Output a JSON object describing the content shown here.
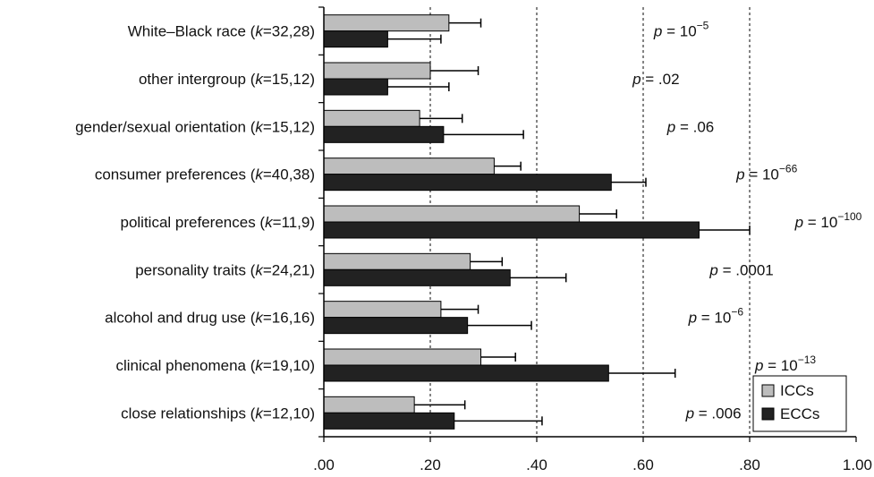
{
  "chart_data": {
    "type": "bar",
    "orientation": "horizontal",
    "title": "",
    "xlabel": "",
    "ylabel": "",
    "xlim": [
      0,
      1.0
    ],
    "x_ticks": [
      ".00",
      ".20",
      ".40",
      ".60",
      ".80",
      "1.00"
    ],
    "x_tick_values": [
      0,
      0.2,
      0.4,
      0.6,
      0.8,
      1.0
    ],
    "grid": "dashed vertical lines at .20, .40, .60, .80",
    "legend_position": "bottom-right",
    "categories": [
      {
        "label": "White–Black race (",
        "k_var": "k",
        "k_values": "=32,28)"
      },
      {
        "label": "other intergroup (",
        "k_var": "k",
        "k_values": "=15,12)"
      },
      {
        "label": "gender/sexual orientation (",
        "k_var": "k",
        "k_values": "=15,12)"
      },
      {
        "label": "consumer preferences (",
        "k_var": "k",
        "k_values": "=40,38)"
      },
      {
        "label": "political preferences (",
        "k_var": "k",
        "k_values": "=11,9)"
      },
      {
        "label": "personality traits (",
        "k_var": "k",
        "k_values": "=24,21)"
      },
      {
        "label": "alcohol and drug use (",
        "k_var": "k",
        "k_values": "=16,16)"
      },
      {
        "label": "clinical phenomena (",
        "k_var": "k",
        "k_values": "=19,10)"
      },
      {
        "label": "close relationships (",
        "k_var": "k",
        "k_values": "=12,10)"
      }
    ],
    "series": [
      {
        "name": "ICCs",
        "color": "#bdbdbd",
        "values": [
          0.235,
          0.2,
          0.18,
          0.32,
          0.48,
          0.275,
          0.22,
          0.295,
          0.17
        ],
        "error_upper": [
          0.295,
          0.29,
          0.26,
          0.37,
          0.55,
          0.335,
          0.29,
          0.36,
          0.265
        ]
      },
      {
        "name": "ECCs",
        "color": "#222222",
        "values": [
          0.12,
          0.12,
          0.225,
          0.54,
          0.705,
          0.35,
          0.27,
          0.535,
          0.245
        ],
        "error_upper": [
          0.22,
          0.235,
          0.375,
          0.605,
          0.8,
          0.455,
          0.39,
          0.66,
          0.41
        ]
      }
    ],
    "p_values": [
      {
        "prefix": "p",
        "text": " = 10",
        "sup": "−5"
      },
      {
        "prefix": "p",
        "text": " = .02",
        "sup": ""
      },
      {
        "prefix": "p",
        "text": " = .06",
        "sup": ""
      },
      {
        "prefix": "p",
        "text": " = 10",
        "sup": "−66"
      },
      {
        "prefix": "p",
        "text": " = 10",
        "sup": "−100"
      },
      {
        "prefix": "p",
        "text": " = .0001",
        "sup": ""
      },
      {
        "prefix": "p",
        "text": " = 10",
        "sup": "−6"
      },
      {
        "prefix": "p",
        "text": " = 10",
        "sup": "−13"
      },
      {
        "prefix": "p",
        "text": " = .006",
        "sup": ""
      }
    ],
    "p_value_positions": [
      0.62,
      0.58,
      0.645,
      0.775,
      0.885,
      0.725,
      0.685,
      0.81,
      0.68
    ]
  },
  "colors": {
    "icc": "#bdbdbd",
    "ecc": "#222222",
    "axis": "#000000",
    "grid": "#333333"
  }
}
